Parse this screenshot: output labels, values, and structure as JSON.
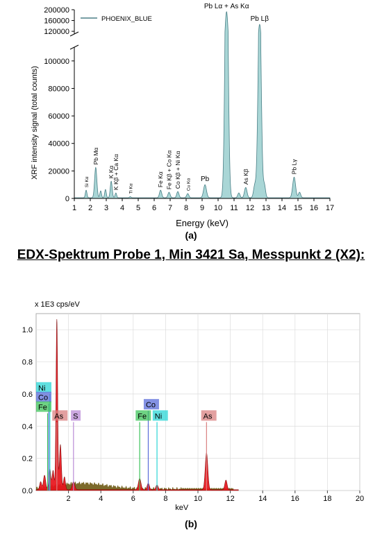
{
  "figure": {
    "caption_a": "(a)",
    "caption_b": "(b)",
    "heading_b": "EDX-Spektrum Probe 1, Min 3421 Sa, Messpunkt 2 (X2):"
  },
  "chart_data": [
    {
      "type": "area",
      "title": "",
      "xlabel": "Energy (keV)",
      "ylabel": "XRF intensity signal (total counts)",
      "legend": {
        "position": "top-left",
        "entries": [
          "PHOENIX_BLUE"
        ]
      },
      "colors": {
        "fill": "#a9d6d6",
        "stroke": "#4a7f86"
      },
      "xlim": [
        1,
        17
      ],
      "ylim_lower": [
        0,
        110000
      ],
      "ylim_upper": [
        110000,
        200000
      ],
      "axis_break": true,
      "x_ticks": [
        "1",
        "2",
        "3",
        "4",
        "5",
        "6",
        "7",
        "8",
        "9",
        "10",
        "11",
        "12",
        "13",
        "14",
        "15",
        "16",
        "17"
      ],
      "y_ticks_lower": [
        "0",
        "20000",
        "40000",
        "60000",
        "80000",
        "100000"
      ],
      "y_ticks_upper": [
        "120000",
        "160000",
        "200000"
      ],
      "grid": false,
      "series": [
        {
          "name": "PHOENIX_BLUE",
          "peaks": [
            {
              "x": 1.74,
              "y": 5500,
              "w": 0.05
            },
            {
              "x": 2.34,
              "y": 22000,
              "w": 0.07
            },
            {
              "x": 2.65,
              "y": 5000,
              "w": 0.05
            },
            {
              "x": 2.95,
              "y": 6000,
              "w": 0.05
            },
            {
              "x": 3.31,
              "y": 12000,
              "w": 0.06
            },
            {
              "x": 3.6,
              "y": 3500,
              "w": 0.05
            },
            {
              "x": 4.5,
              "y": 800,
              "w": 0.05
            },
            {
              "x": 6.4,
              "y": 5500,
              "w": 0.07
            },
            {
              "x": 6.93,
              "y": 4000,
              "w": 0.07
            },
            {
              "x": 7.48,
              "y": 4500,
              "w": 0.07
            },
            {
              "x": 8.1,
              "y": 3000,
              "w": 0.07
            },
            {
              "x": 9.18,
              "y": 9500,
              "w": 0.09
            },
            {
              "x": 10.53,
              "y": 192000,
              "w": 0.1
            },
            {
              "x": 11.3,
              "y": 3500,
              "w": 0.07
            },
            {
              "x": 11.73,
              "y": 7500,
              "w": 0.08
            },
            {
              "x": 12.3,
              "y": 9000,
              "w": 0.08
            },
            {
              "x": 12.6,
              "y": 145000,
              "w": 0.1
            },
            {
              "x": 12.9,
              "y": 9000,
              "w": 0.07
            },
            {
              "x": 14.76,
              "y": 15000,
              "w": 0.09
            },
            {
              "x": 15.1,
              "y": 4000,
              "w": 0.07
            }
          ],
          "background": 500
        }
      ],
      "annotations": [
        {
          "text": "Si Kα",
          "x": 1.74,
          "y": 5500,
          "small": true
        },
        {
          "text": "Pb Mα",
          "x": 2.34,
          "y": 22000,
          "small": false
        },
        {
          "text": "K Kα",
          "x": 3.31,
          "y": 12000,
          "small": false
        },
        {
          "text": "K Kβ + Ca Kα",
          "x": 3.6,
          "y": 3500,
          "small": false
        },
        {
          "text": "Ti Kα",
          "x": 4.5,
          "y": 800,
          "small": true
        },
        {
          "text": "Fe Kα",
          "x": 6.4,
          "y": 5500,
          "small": false
        },
        {
          "text": "Fe Kβ + Co Kα",
          "x": 6.93,
          "y": 4000,
          "small": false
        },
        {
          "text": "Co Kβ + Ni Kα",
          "x": 7.48,
          "y": 4500,
          "small": false
        },
        {
          "text": "Cu Kα",
          "x": 8.1,
          "y": 3000,
          "small": true
        },
        {
          "text": "Pb",
          "x": 9.18,
          "y": 9500,
          "horizontal": true
        },
        {
          "text": "Pb Lα + As Kα",
          "x": 10.53,
          "y": 192000,
          "horizontal": true
        },
        {
          "text": "As Kβ",
          "x": 11.73,
          "y": 7500,
          "small": false
        },
        {
          "text": "Pb Lβ",
          "x": 12.6,
          "y": 145000,
          "horizontal": true
        },
        {
          "text": "Pb Lγ",
          "x": 14.76,
          "y": 15000,
          "small": false
        }
      ]
    },
    {
      "type": "area",
      "title": "",
      "unit_label": "x 1E3 cps/eV",
      "xlabel": "keV",
      "xlim": [
        0,
        20
      ],
      "ylim": [
        0,
        1.1
      ],
      "x_ticks": [
        "2",
        "4",
        "6",
        "8",
        "10",
        "12",
        "14",
        "16",
        "18",
        "20"
      ],
      "y_ticks": [
        "0.0",
        "0.2",
        "0.4",
        "0.6",
        "0.8",
        "1.0"
      ],
      "grid": true,
      "colors": {
        "fill": "#e8141c",
        "stroke": "#7a0000",
        "background_fill": "#6e5a14"
      },
      "peaks": [
        {
          "x": 0.28,
          "y": 0.05,
          "w": 0.06
        },
        {
          "x": 0.52,
          "y": 0.09,
          "w": 0.07
        },
        {
          "x": 0.85,
          "y": 0.13,
          "w": 0.06
        },
        {
          "x": 1.05,
          "y": 0.12,
          "w": 0.06
        },
        {
          "x": 1.28,
          "y": 1.06,
          "w": 0.05
        },
        {
          "x": 1.5,
          "y": 0.28,
          "w": 0.06
        },
        {
          "x": 1.75,
          "y": 0.08,
          "w": 0.06
        },
        {
          "x": 2.31,
          "y": 0.05,
          "w": 0.08
        },
        {
          "x": 6.4,
          "y": 0.07,
          "w": 0.08
        },
        {
          "x": 6.93,
          "y": 0.04,
          "w": 0.07
        },
        {
          "x": 7.47,
          "y": 0.03,
          "w": 0.07
        },
        {
          "x": 10.53,
          "y": 0.23,
          "w": 0.08
        },
        {
          "x": 11.73,
          "y": 0.06,
          "w": 0.07
        }
      ],
      "element_labels": [
        {
          "text": "Ni",
          "color": "#29d6d6",
          "x": 0.0,
          "y": 0.635,
          "line_x": 0.85
        },
        {
          "text": "Co",
          "color": "#5a6cd9",
          "x": 0.0,
          "y": 0.575,
          "line_x": 0.78
        },
        {
          "text": "Fe",
          "color": "#3ec45a",
          "x": 0.0,
          "y": 0.515,
          "line_x": 0.71
        },
        {
          "text": "As",
          "color": "#d98080",
          "x": 1.0,
          "y": 0.46,
          "line_x": 1.28
        },
        {
          "text": "S",
          "color": "#b98ad6",
          "x": 2.15,
          "y": 0.46,
          "line_x": 2.31
        },
        {
          "text": "Co",
          "color": "#5a6cd9",
          "x": 6.65,
          "y": 0.53,
          "line_x": 6.93
        },
        {
          "text": "Fe",
          "color": "#3ec45a",
          "x": 6.15,
          "y": 0.46,
          "line_x": 6.4
        },
        {
          "text": "Ni",
          "color": "#29d6d6",
          "x": 7.2,
          "y": 0.46,
          "line_x": 7.47
        },
        {
          "text": "As",
          "color": "#d98080",
          "x": 10.2,
          "y": 0.46,
          "line_x": 10.53
        }
      ]
    }
  ]
}
